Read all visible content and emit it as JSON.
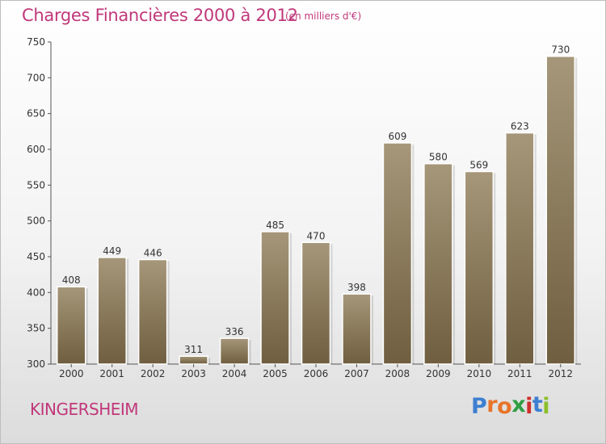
{
  "title": "Charges Financières 2000 à 2012",
  "subtitle": "(en milliers d'€)",
  "commune": "KINGERSHEIM",
  "logo": {
    "letters": [
      "P",
      "r",
      "o",
      "x",
      "i",
      "t",
      "i"
    ],
    "colors": [
      "#3d7fd1",
      "#e8742a",
      "#e8742a",
      "#2f9e44",
      "#cf2f2f",
      "#3d7fd1",
      "#8bbf2a"
    ]
  },
  "colors": {
    "bar_top": "#a6977a",
    "bar_bottom": "#6f5e3f",
    "accent": "#c0387a"
  },
  "chart_data": {
    "type": "bar",
    "categories": [
      "2000",
      "2001",
      "2002",
      "2003",
      "2004",
      "2005",
      "2006",
      "2007",
      "2008",
      "2009",
      "2010",
      "2011",
      "2012"
    ],
    "values": [
      408,
      449,
      446,
      311,
      336,
      485,
      470,
      398,
      609,
      580,
      569,
      623,
      730
    ],
    "ylim": [
      300,
      750
    ],
    "yticks": [
      300,
      350,
      400,
      450,
      500,
      550,
      600,
      650,
      700,
      750
    ],
    "grid": false,
    "xlabel": "",
    "ylabel": ""
  }
}
